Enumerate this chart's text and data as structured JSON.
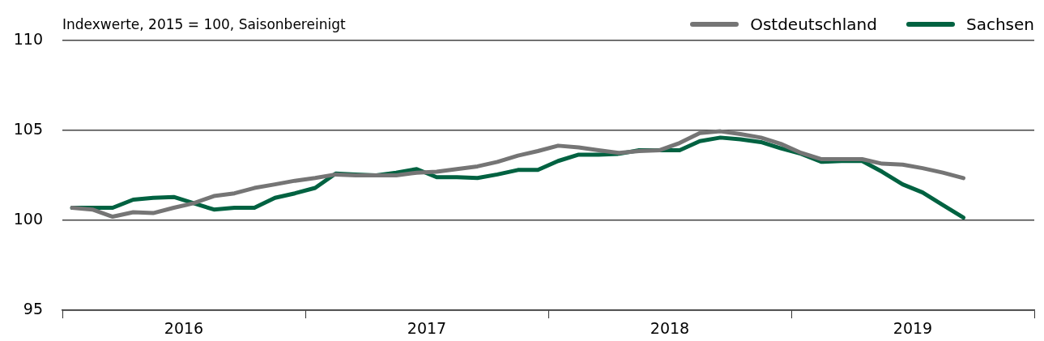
{
  "chart_data": {
    "type": "line",
    "title": "Indexwerte, 2015 = 100, Saisonbereinigt",
    "x": [
      "2016-01-16",
      "2016-02-15",
      "2016-03-16",
      "2016-04-16",
      "2016-05-16",
      "2016-06-16",
      "2016-07-16",
      "2016-08-16",
      "2016-09-16",
      "2016-10-16",
      "2016-11-16",
      "2016-12-16",
      "2017-01-16",
      "2017-02-15",
      "2017-03-16",
      "2017-04-16",
      "2017-05-16",
      "2017-06-16",
      "2017-07-16",
      "2017-08-16",
      "2017-09-16",
      "2017-10-16",
      "2017-11-16",
      "2017-12-16",
      "2018-01-16",
      "2018-02-15",
      "2018-03-16",
      "2018-04-16",
      "2018-05-16",
      "2018-06-16",
      "2018-07-16",
      "2018-08-16",
      "2018-09-16",
      "2018-10-16",
      "2018-11-16",
      "2018-12-16",
      "2019-01-16",
      "2019-02-15",
      "2019-03-16",
      "2019-04-16",
      "2019-05-16",
      "2019-06-16",
      "2019-07-16",
      "2019-08-16",
      "2019-09-16"
    ],
    "series": [
      {
        "name": "Ostdeutschland",
        "color": "#757575",
        "values": [
          100.7,
          100.6,
          100.2,
          100.45,
          100.4,
          100.7,
          100.95,
          101.35,
          101.5,
          101.8,
          102.0,
          102.2,
          102.35,
          102.55,
          102.5,
          102.5,
          102.5,
          102.65,
          102.7,
          102.85,
          103.0,
          103.25,
          103.6,
          103.85,
          104.15,
          104.05,
          103.9,
          103.75,
          103.85,
          103.9,
          104.3,
          104.85,
          104.95,
          104.8,
          104.6,
          104.25,
          103.75,
          103.4,
          103.4,
          103.4,
          103.15,
          103.1,
          102.9,
          102.65,
          102.35
        ]
      },
      {
        "name": "Sachsen",
        "color": "#006241",
        "values": [
          100.7,
          100.7,
          100.7,
          101.15,
          101.25,
          101.3,
          100.95,
          100.6,
          100.7,
          100.7,
          101.25,
          101.5,
          101.8,
          102.6,
          102.55,
          102.5,
          102.65,
          102.85,
          102.4,
          102.4,
          102.35,
          102.55,
          102.8,
          102.8,
          103.3,
          103.65,
          103.65,
          103.7,
          103.9,
          103.9,
          103.9,
          104.4,
          104.6,
          104.5,
          104.35,
          104.0,
          103.7,
          103.25,
          103.3,
          103.3,
          102.7,
          102.0,
          101.55,
          100.85,
          100.15
        ]
      }
    ],
    "xlim": [
      "2016-01-01",
      "2020-01-01"
    ],
    "xticks": [
      {
        "value": "2016-01-01",
        "label": null
      },
      {
        "value": "2016-07-01",
        "label": "2016"
      },
      {
        "value": "2017-01-01",
        "label": null
      },
      {
        "value": "2017-07-01",
        "label": "2017"
      },
      {
        "value": "2018-01-01",
        "label": null
      },
      {
        "value": "2018-07-01",
        "label": "2018"
      },
      {
        "value": "2019-01-01",
        "label": null
      },
      {
        "value": "2019-07-01",
        "label": "2019"
      },
      {
        "value": "2020-01-01",
        "label": null
      }
    ],
    "ylim": [
      95,
      110
    ],
    "yticks": [
      95,
      100,
      105,
      110
    ],
    "grid": "y",
    "legend": "top right",
    "marker": "none",
    "line_style": "solid"
  }
}
